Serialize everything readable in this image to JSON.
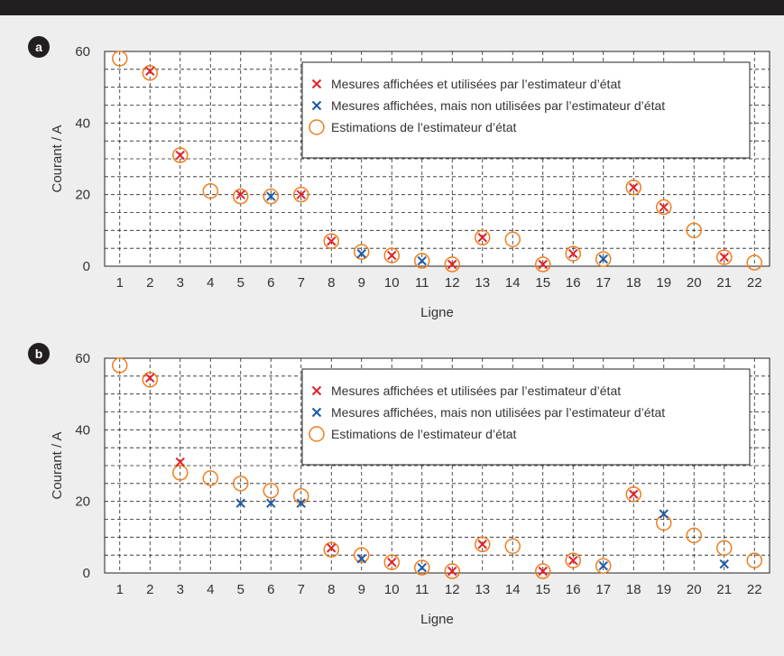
{
  "chart_data": [
    {
      "type": "scatter",
      "panel_label": "a",
      "xlabel": "Ligne",
      "ylabel": "Courant / A",
      "x": [
        1,
        2,
        3,
        4,
        5,
        6,
        7,
        8,
        9,
        10,
        11,
        12,
        13,
        14,
        15,
        16,
        17,
        18,
        19,
        20,
        21,
        22
      ],
      "xlim": [
        0.5,
        22.5
      ],
      "ylim": [
        0,
        60
      ],
      "yticks": [
        0,
        20,
        40,
        60
      ],
      "grid": true,
      "legend_position": "top-right",
      "colors": {
        "red": "#e3232b",
        "blue": "#1f5aa6",
        "orange": "#f07d1a"
      },
      "series": [
        {
          "name": "Mesures affichées et utilisées par l’estimateur d’état",
          "marker": "x-red",
          "points": [
            [
              2,
              54.5
            ],
            [
              3,
              31
            ],
            [
              5,
              20
            ],
            [
              7,
              20
            ],
            [
              8,
              7
            ],
            [
              10,
              3
            ],
            [
              12,
              0.5
            ],
            [
              13,
              8
            ],
            [
              15,
              0.5
            ],
            [
              16,
              3.5
            ],
            [
              18,
              22
            ],
            [
              19,
              16.5
            ],
            [
              21,
              2.5
            ]
          ]
        },
        {
          "name": "Mesures affichées, mais non utilisées par l’estimateur d’état",
          "marker": "x-blue",
          "points": [
            [
              6,
              19.5
            ],
            [
              9,
              3.5
            ],
            [
              11,
              1.5
            ],
            [
              17,
              2
            ]
          ]
        },
        {
          "name": "Estimations de l’estimateur d’état",
          "marker": "circle-orange",
          "points": [
            [
              1,
              58
            ],
            [
              2,
              54
            ],
            [
              3,
              31
            ],
            [
              4,
              21
            ],
            [
              5,
              19.5
            ],
            [
              6,
              19.5
            ],
            [
              7,
              20
            ],
            [
              8,
              7
            ],
            [
              9,
              4
            ],
            [
              10,
              3
            ],
            [
              11,
              1.5
            ],
            [
              12,
              0.5
            ],
            [
              13,
              8
            ],
            [
              14,
              7.5
            ],
            [
              15,
              0.5
            ],
            [
              16,
              3.5
            ],
            [
              17,
              2
            ],
            [
              18,
              22
            ],
            [
              19,
              16.5
            ],
            [
              20,
              10
            ],
            [
              21,
              2.5
            ],
            [
              22,
              1
            ]
          ]
        }
      ]
    },
    {
      "type": "scatter",
      "panel_label": "b",
      "xlabel": "Ligne",
      "ylabel": "Courant / A",
      "x": [
        1,
        2,
        3,
        4,
        5,
        6,
        7,
        8,
        9,
        10,
        11,
        12,
        13,
        14,
        15,
        16,
        17,
        18,
        19,
        20,
        21,
        22
      ],
      "xlim": [
        0.5,
        22.5
      ],
      "ylim": [
        0,
        60
      ],
      "yticks": [
        0,
        20,
        40,
        60
      ],
      "grid": true,
      "legend_position": "top-right",
      "colors": {
        "red": "#e3232b",
        "blue": "#1f5aa6",
        "orange": "#f07d1a"
      },
      "series": [
        {
          "name": "Mesures affichées et utilisées par l’estimateur d’état",
          "marker": "x-red",
          "points": [
            [
              2,
              54.5
            ],
            [
              3,
              31
            ],
            [
              8,
              7
            ],
            [
              10,
              3
            ],
            [
              12,
              0.5
            ],
            [
              13,
              8
            ],
            [
              15,
              0.5
            ],
            [
              16,
              3.5
            ],
            [
              18,
              22
            ]
          ]
        },
        {
          "name": "Mesures affichées, mais non utilisées par l’estimateur d’état",
          "marker": "x-blue",
          "points": [
            [
              5,
              19.5
            ],
            [
              6,
              19.5
            ],
            [
              7,
              19.5
            ],
            [
              9,
              4
            ],
            [
              11,
              1.5
            ],
            [
              17,
              2
            ],
            [
              19,
              16.5
            ],
            [
              21,
              2.5
            ]
          ]
        },
        {
          "name": "Estimations de l’estimateur d’état",
          "marker": "circle-orange",
          "points": [
            [
              1,
              58
            ],
            [
              2,
              54
            ],
            [
              3,
              28
            ],
            [
              4,
              26.5
            ],
            [
              5,
              25
            ],
            [
              6,
              23
            ],
            [
              7,
              21.5
            ],
            [
              8,
              6.5
            ],
            [
              9,
              5
            ],
            [
              10,
              3
            ],
            [
              11,
              1.5
            ],
            [
              12,
              0.5
            ],
            [
              13,
              8
            ],
            [
              14,
              7.5
            ],
            [
              15,
              0.5
            ],
            [
              16,
              3.5
            ],
            [
              17,
              2
            ],
            [
              18,
              22
            ],
            [
              19,
              14
            ],
            [
              20,
              10.5
            ],
            [
              21,
              7
            ],
            [
              22,
              3.5
            ]
          ]
        }
      ]
    }
  ]
}
